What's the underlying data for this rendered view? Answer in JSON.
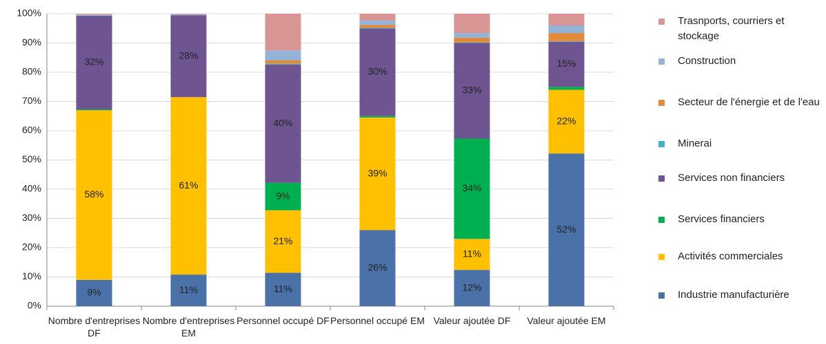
{
  "chart_data": {
    "type": "stacked_bar",
    "categories": [
      "Nombre d'entreprises DF",
      "Nombre d'entreprises EM",
      "Personnel occupé DF",
      "Personnel occupé EM",
      "Valeur ajoutée DF",
      "Valeur ajoutée EM"
    ],
    "series": [
      {
        "name": "Industrie manufacturière",
        "color": "#4a72a8",
        "values": [
          9,
          10.8,
          11.4,
          26,
          12.4,
          52.2
        ],
        "value_labels": [
          "9%",
          "11%",
          "11%",
          "26%",
          "12%",
          "52%"
        ]
      },
      {
        "name": "Activités commerciales",
        "color": "#ffc000",
        "values": [
          58,
          60.7,
          21.4,
          38.5,
          10.6,
          21.8
        ],
        "value_labels": [
          "58%",
          "61%",
          "21%",
          "39%",
          "11%",
          "22%"
        ]
      },
      {
        "name": "Services financiers",
        "color": "#00b050",
        "values": [
          0.3,
          0,
          9.4,
          0.5,
          34.3,
          1
        ],
        "value_labels": [
          null,
          null,
          "9%",
          null,
          "34%",
          null
        ]
      },
      {
        "name": "Services non financiers",
        "color": "#6e5591",
        "values": [
          32,
          28,
          40.4,
          30,
          32.7,
          15.4
        ],
        "value_labels": [
          "32%",
          "28%",
          "40%",
          "30%",
          "33%",
          "15%"
        ]
      },
      {
        "name": "Minerai",
        "color": "#4bacc6",
        "values": [
          0,
          0,
          0.3,
          0.2,
          0.2,
          0.2
        ]
      },
      {
        "name": "Secteur de l'énergie et de l'eau",
        "color": "#e08a3c",
        "values": [
          0,
          0,
          1.2,
          1,
          1.6,
          2.8
        ]
      },
      {
        "name": "Construction",
        "color": "#95b3d7",
        "values": [
          0.4,
          0.3,
          3.4,
          1.5,
          1.6,
          2.6
        ]
      },
      {
        "name": "Trasnports, courriers et stockage",
        "color": "#d99594",
        "values": [
          0.3,
          0.2,
          12.5,
          2.3,
          6.6,
          4
        ]
      }
    ],
    "ylim": [
      0,
      100
    ],
    "yticks": [
      {
        "value": 0,
        "label": "0%"
      },
      {
        "value": 10,
        "label": "10%"
      },
      {
        "value": 20,
        "label": "20%"
      },
      {
        "value": 30,
        "label": "30%"
      },
      {
        "value": 40,
        "label": "40%"
      },
      {
        "value": 50,
        "label": "50%"
      },
      {
        "value": 60,
        "label": "60%"
      },
      {
        "value": 70,
        "label": "70%"
      },
      {
        "value": 80,
        "label": "80%"
      },
      {
        "value": 90,
        "label": "90%"
      },
      {
        "value": 100,
        "label": "100%"
      }
    ],
    "grid": true,
    "legend": "right"
  }
}
